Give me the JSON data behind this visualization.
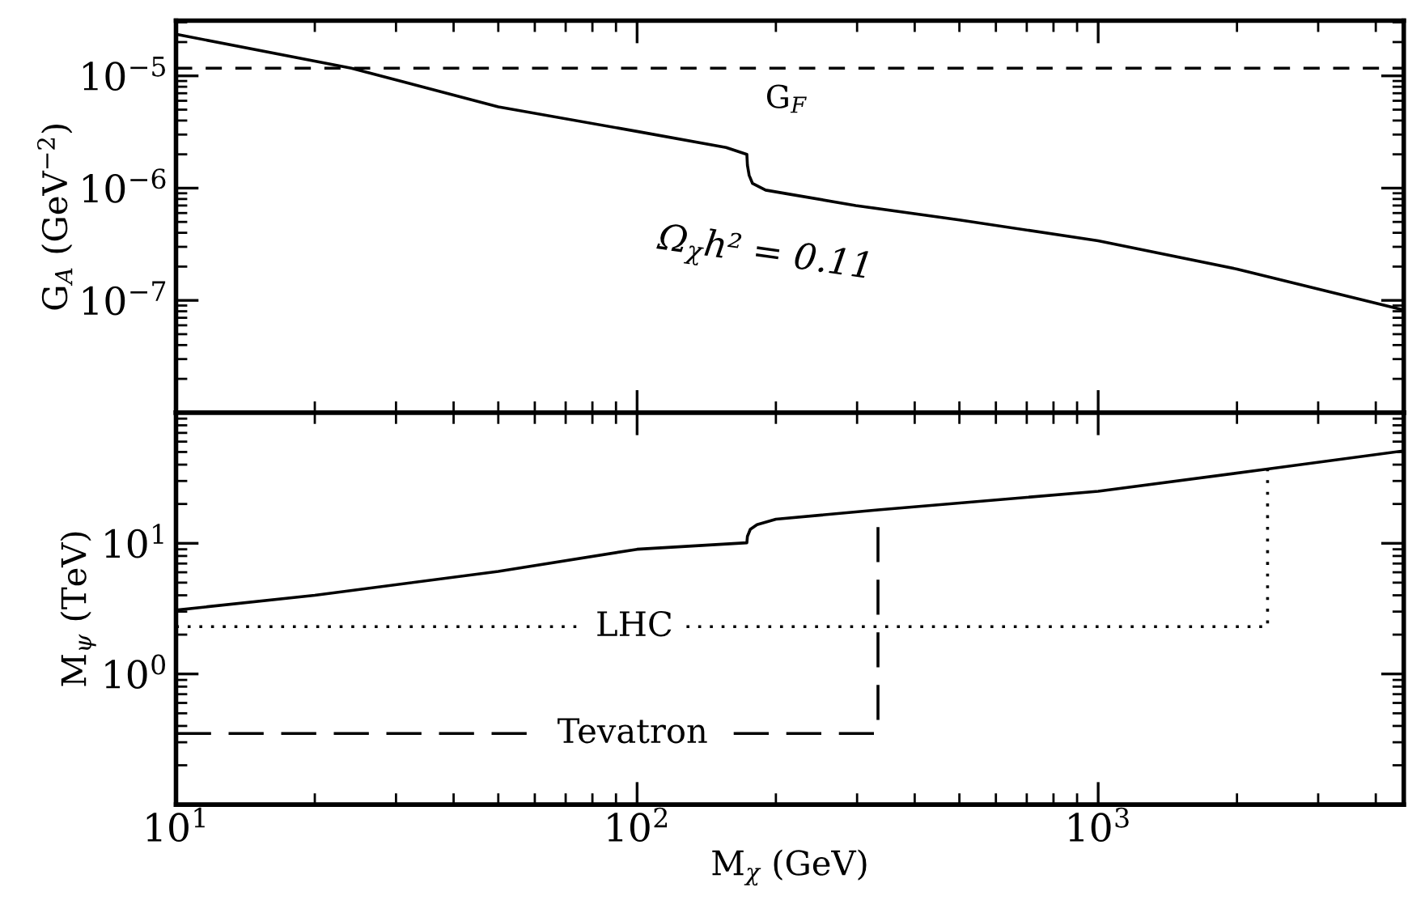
{
  "chart_data": [
    {
      "type": "line",
      "ylabel": "G$_{A}$ (GeV$^{−2}$)",
      "log": "xy",
      "xlim": [
        10,
        4600
      ],
      "ylim": [
        1e-08,
        3.1e-05
      ],
      "xticks": [
        10,
        100,
        1000
      ],
      "yticks": [
        {
          "value": 1e-05,
          "label": "10$^{−5}$"
        },
        {
          "value": 1e-06,
          "label": "10$^{−6}$"
        },
        {
          "value": 1e-07,
          "label": "10$^{−7}$"
        }
      ],
      "tick_labels": "y",
      "grid": false,
      "legend": false,
      "series": [
        {
          "color": "#000000",
          "line_style": "solid",
          "x": [
            10,
            24,
            50,
            100,
            156,
            173,
            173.5,
            175,
            178,
            190,
            215,
            298,
            500,
            1000,
            2000,
            4600
          ],
          "values": [
            2.35e-05,
            1.17e-05,
            5.3e-06,
            3.2e-06,
            2.3e-06,
            2e-06,
            1.6e-06,
            1.3e-06,
            1.1e-06,
            9.6e-07,
            8.8e-07,
            7e-07,
            5.2e-07,
            3.4e-07,
            1.9e-07,
            8.2e-08
          ]
        }
      ],
      "ref_lines": [
        {
          "axis": "y",
          "value": 1.17e-05,
          "color": "#000000",
          "line_style": "dashed",
          "label": "G$_{F}$"
        }
      ],
      "annotations": [
        "Ω$_{χ}$h² = 0.11"
      ]
    },
    {
      "type": "line",
      "xlabel": "M$_{χ}$ (GeV)",
      "ylabel": "M$_{ψ}$ (TeV)",
      "log": "xy",
      "xlim": [
        10,
        4600
      ],
      "ylim": [
        0.1,
        100
      ],
      "xticks": [
        {
          "value": 10,
          "label": "10$^{1}$"
        },
        {
          "value": 100,
          "label": "10$^{2}$"
        },
        {
          "value": 1000,
          "label": "10$^{3}$"
        }
      ],
      "yticks": [
        {
          "value": 1,
          "label": "10$^{0}$"
        },
        {
          "value": 10,
          "label": "10$^{1}$"
        }
      ],
      "grid": false,
      "legend": false,
      "series": [
        {
          "color": "#000000",
          "line_style": "solid",
          "x": [
            10,
            20,
            50,
            100,
            173,
            173.5,
            176,
            182,
            200,
            333,
            1000,
            2330,
            4600
          ],
          "values": [
            3.08,
            4.0,
            6.1,
            9.0,
            10.1,
            11.3,
            12.8,
            13.9,
            15.3,
            18,
            25,
            37,
            51
          ]
        },
        {
          "name": "LHC",
          "color": "#000000",
          "line_style": "dotted",
          "x": [
            10,
            76,
            100,
            128,
            2330,
            2330
          ],
          "values": [
            2.3,
            2.3,
            null,
            2.3,
            2.3,
            37
          ]
        },
        {
          "name": "Tevatron",
          "color": "#000000",
          "line_style": "dashed",
          "x": [
            10,
            59,
            100,
            162,
            333,
            333
          ],
          "values": [
            0.35,
            0.35,
            null,
            0.35,
            0.35,
            18
          ]
        }
      ]
    }
  ]
}
